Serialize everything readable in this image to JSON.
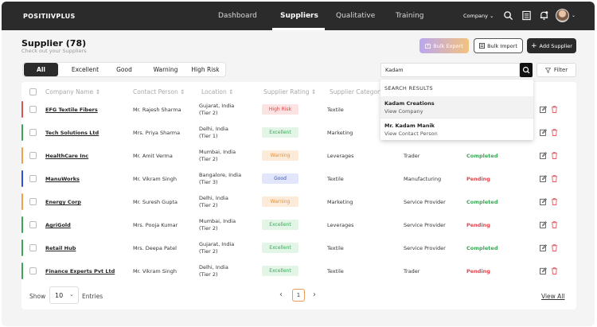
{
  "nav": {
    "logo": "POSITIIVPLUS",
    "links": [
      "Dashboard",
      "Suppliers",
      "Qualitative",
      "Training"
    ],
    "active": "Suppliers",
    "company_label": "Company"
  },
  "header": {
    "title": "Supplier (78)",
    "subtitle": "Check out your Suppliers",
    "bulk_export": "Bulk Export",
    "bulk_import": "Bulk Import",
    "add_supplier": "Add Supplier"
  },
  "tabs": [
    "All",
    "Excellent",
    "Good",
    "Warning",
    "High Risk"
  ],
  "search": {
    "value": "Kadam",
    "filter_label": "Filter"
  },
  "columns": [
    "Company Name",
    "Contact Person",
    "Location",
    "Supplier Rating",
    "Supplier Category"
  ],
  "rows": [
    {
      "company": "EFG Textile Fibers",
      "contact": "Mr. Rajesh Sharma",
      "loc1": "Gujarat, India",
      "loc2": "(Tier 2)",
      "rating": "High Risk",
      "category": "Textile",
      "type": "",
      "status": "",
      "bar": "#d9534f"
    },
    {
      "company": "Tech Solutions Ltd",
      "contact": "Mrs. Priya Sharma",
      "loc1": "Delhi, India",
      "loc2": "(Tier 1)",
      "rating": "Excellent",
      "category": "Marketing",
      "type": "",
      "status": "",
      "bar": "#3aa757"
    },
    {
      "company": "HealthCare Inc",
      "contact": "Mr. Amit Verma",
      "loc1": "Mumbai, India",
      "loc2": "(Tier 2)",
      "rating": "Warning",
      "category": "Leverages",
      "type": "Trader",
      "status": "Completed",
      "bar": "#f0a04b"
    },
    {
      "company": "ManuWorks",
      "contact": "Mr. Vikram Singh",
      "loc1": "Bangalore, India",
      "loc2": "(Tier 3)",
      "rating": "Good",
      "category": "Textile",
      "type": "Manufacturing",
      "status": "Pending",
      "bar": "#2f4fd8"
    },
    {
      "company": "Energy Corp",
      "contact": "Mr. Suresh Gupta",
      "loc1": "Delhi, India",
      "loc2": "(Tier 2)",
      "rating": "Warning",
      "category": "Marketing",
      "type": "Service Provider",
      "status": "Completed",
      "bar": "#f0a04b"
    },
    {
      "company": "AgriGold",
      "contact": "Mrs. Pooja Kumar",
      "loc1": "Mumbai, India",
      "loc2": "(Tier 2)",
      "rating": "Excellent",
      "category": "Leverages",
      "type": "Service Provider",
      "status": "Pending",
      "bar": "#3aa757"
    },
    {
      "company": "Retail Hub",
      "contact": "Mrs. Deepa Patel",
      "loc1": "Gujarat, India",
      "loc2": "(Tier 2)",
      "rating": "Excellent",
      "category": "Textile",
      "type": "Service Provider",
      "status": "Completed",
      "bar": "#3aa757"
    },
    {
      "company": "Finance Experts Pvt Ltd",
      "contact": "Mr. Vikram Singh",
      "loc1": "Delhi, India",
      "loc2": "(Tier 2)",
      "rating": "Excellent",
      "category": "Textile",
      "type": "Trader",
      "status": "Pending",
      "bar": "#3aa757"
    }
  ],
  "rating_colors": {
    "High Risk": {
      "bg": "#fbe3e3",
      "fg": "#d64545"
    },
    "Excellent": {
      "bg": "#e2f5e6",
      "fg": "#3aa757"
    },
    "Warning": {
      "bg": "#fdebd9",
      "fg": "#e8902f"
    },
    "Good": {
      "bg": "#e1e6fb",
      "fg": "#3a56cc"
    }
  },
  "status_colors": {
    "Completed": "#3aa757",
    "Pending": "#e0454f"
  },
  "dropdown": {
    "heading": "SEARCH RESULTS",
    "results": [
      {
        "name": "Kadam Creations",
        "sub": "View Company"
      },
      {
        "name": "Mr. Kadam Manik",
        "sub": "View Contact Person"
      }
    ]
  },
  "footer": {
    "show": "Show",
    "entries_value": "10",
    "entries": "Entries",
    "page": "1",
    "view_all": "View All"
  }
}
